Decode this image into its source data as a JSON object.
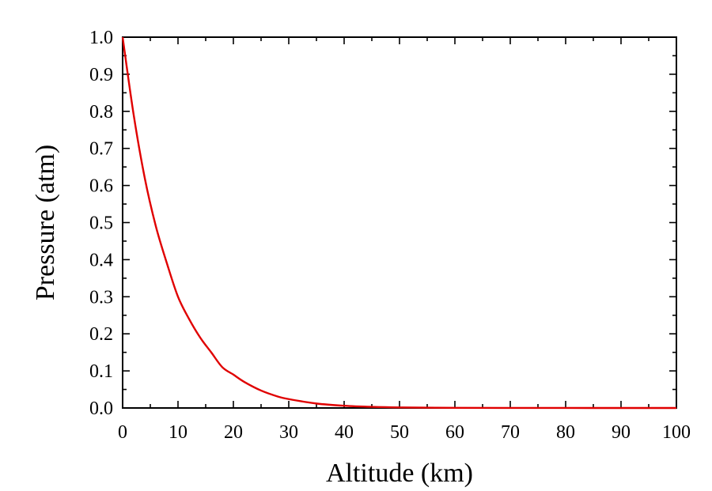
{
  "chart_data": {
    "type": "line",
    "title": "",
    "xlabel": "Altitude (km)",
    "ylabel": "Pressure (atm)",
    "xlim": [
      0,
      100
    ],
    "ylim": [
      0.0,
      1.0
    ],
    "x_ticks": [
      "0",
      "10",
      "20",
      "30",
      "40",
      "50",
      "60",
      "70",
      "80",
      "90",
      "100"
    ],
    "y_ticks": [
      "0.0",
      "0.1",
      "0.2",
      "0.3",
      "0.4",
      "0.5",
      "0.6",
      "0.7",
      "0.8",
      "0.9",
      "1.0"
    ],
    "grid": false,
    "legend": "none",
    "series": [
      {
        "color": "#e00000",
        "x": [
          0,
          2,
          4,
          6,
          8,
          10,
          12,
          14,
          16,
          18,
          20,
          22,
          25,
          28,
          30,
          35,
          40,
          45,
          50,
          60,
          70,
          80,
          90,
          100
        ],
        "y": [
          1.0,
          0.79,
          0.62,
          0.49,
          0.39,
          0.3,
          0.24,
          0.19,
          0.15,
          0.11,
          0.09,
          0.07,
          0.047,
          0.031,
          0.024,
          0.012,
          0.006,
          0.003,
          0.0015,
          0.0004,
          0.0001,
          3e-05,
          1e-05,
          0.0
        ]
      }
    ]
  }
}
